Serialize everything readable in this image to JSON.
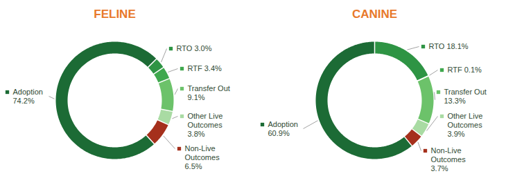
{
  "chart_data": [
    {
      "type": "donut",
      "title": "FELINE",
      "categories": [
        "RTO",
        "RTF",
        "Transfer Out",
        "Other Live Outcomes",
        "Non-Live Outcomes",
        "Adoption"
      ],
      "values": [
        3.0,
        3.4,
        9.1,
        3.8,
        6.5,
        74.2
      ],
      "value_labels": [
        "3.0%",
        "3.4%",
        "9.1%",
        "3.8%",
        "6.5%",
        "74.2%"
      ],
      "colors": [
        "#2e9444",
        "#3fa84e",
        "#6cc26a",
        "#a9dba3",
        "#a5301c",
        "#1c6b35"
      ],
      "data_labels": true
    },
    {
      "type": "donut",
      "title": "CANINE",
      "categories": [
        "RTO",
        "RTF",
        "Transfer Out",
        "Other Live Outcomes",
        "Non-Live Outcomes",
        "Adoption"
      ],
      "values": [
        18.1,
        0.1,
        13.3,
        3.9,
        3.7,
        60.9
      ],
      "value_labels": [
        "18.1%",
        "0.1%",
        "13.3%",
        "3.9%",
        "3.7%",
        "60.9%"
      ],
      "colors": [
        "#2e9444",
        "#3fa84e",
        "#6cc26a",
        "#a9dba3",
        "#a5301c",
        "#1c6b35"
      ],
      "data_labels": true
    }
  ]
}
